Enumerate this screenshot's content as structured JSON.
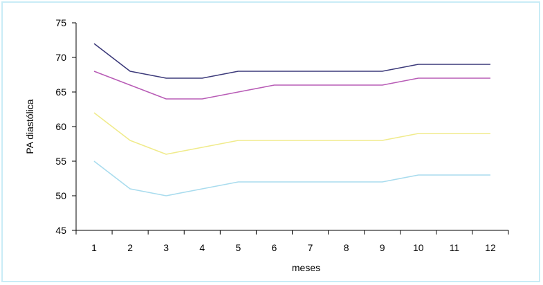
{
  "chart_data": {
    "type": "line",
    "title": "",
    "xlabel": "meses",
    "ylabel": "PA diastólica",
    "x": [
      1,
      2,
      3,
      4,
      5,
      6,
      7,
      8,
      9,
      10,
      11,
      12
    ],
    "ylim": [
      45,
      75
    ],
    "yticks": [
      45,
      50,
      55,
      60,
      65,
      70,
      75
    ],
    "grid": false,
    "legend": "none",
    "series": [
      {
        "color": "#3c3a7a",
        "values": [
          72,
          68,
          67,
          67,
          68,
          68,
          68,
          68,
          68,
          69,
          69,
          69
        ]
      },
      {
        "color": "#b85cb6",
        "values": [
          68,
          66,
          64,
          64,
          65,
          66,
          66,
          66,
          66,
          67,
          67,
          67
        ]
      },
      {
        "color": "#f0eb8c",
        "values": [
          62,
          58,
          56,
          57,
          58,
          58,
          58,
          58,
          58,
          59,
          59,
          59
        ]
      },
      {
        "color": "#a9dcee",
        "values": [
          55,
          51,
          50,
          51,
          52,
          52,
          52,
          52,
          52,
          53,
          53,
          53
        ]
      }
    ]
  }
}
